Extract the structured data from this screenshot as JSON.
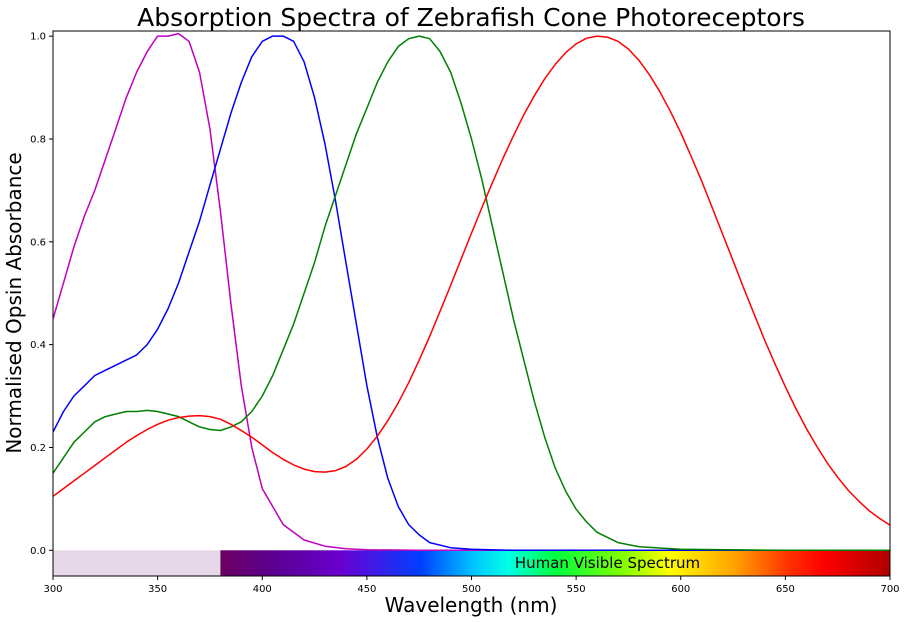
{
  "chart_data": {
    "type": "line",
    "title": "Absorption Spectra of Zebrafish Cone Photoreceptors",
    "xlabel": "Wavelength (nm)",
    "ylabel": "Normalised Opsin Absorbance",
    "xlim": [
      300,
      700
    ],
    "ylim": [
      -0.05,
      1.01
    ],
    "xticks": [
      300,
      350,
      400,
      450,
      500,
      550,
      600,
      650,
      700
    ],
    "yticks": [
      0.0,
      0.2,
      0.4,
      0.6,
      0.8,
      1.0
    ],
    "grid": false,
    "legend": false,
    "band": {
      "label": "Human Visible Spectrum",
      "uv_range": [
        300,
        380
      ],
      "visible_range": [
        380,
        700
      ],
      "y_range": [
        -0.05,
        0.0
      ],
      "uv_color": "#e6d8e8"
    },
    "series": [
      {
        "color": "#bf00bf",
        "x": [
          300,
          305,
          310,
          315,
          320,
          325,
          330,
          335,
          340,
          345,
          350,
          355,
          360,
          365,
          370,
          375,
          380,
          385,
          390,
          395,
          400,
          410,
          420,
          430,
          440,
          450,
          475,
          500,
          550,
          600,
          650,
          700
        ],
        "y": [
          0.45,
          0.52,
          0.59,
          0.65,
          0.7,
          0.76,
          0.82,
          0.88,
          0.93,
          0.97,
          1.0,
          1.0,
          1.005,
          0.99,
          0.93,
          0.82,
          0.66,
          0.48,
          0.32,
          0.2,
          0.12,
          0.05,
          0.02,
          0.008,
          0.003,
          0.001,
          0.0,
          0.0,
          0.0,
          0.0,
          0.0,
          0.0
        ]
      },
      {
        "color": "#0000ff",
        "x": [
          300,
          305,
          310,
          315,
          320,
          325,
          330,
          335,
          340,
          345,
          350,
          355,
          360,
          365,
          370,
          375,
          380,
          385,
          390,
          395,
          400,
          405,
          410,
          415,
          420,
          425,
          430,
          435,
          440,
          445,
          450,
          455,
          460,
          465,
          470,
          475,
          480,
          490,
          500,
          520,
          550,
          600,
          650,
          700
        ],
        "y": [
          0.23,
          0.27,
          0.3,
          0.32,
          0.34,
          0.35,
          0.36,
          0.37,
          0.38,
          0.4,
          0.43,
          0.47,
          0.52,
          0.58,
          0.64,
          0.71,
          0.78,
          0.85,
          0.91,
          0.96,
          0.99,
          1.0,
          1.0,
          0.99,
          0.95,
          0.88,
          0.79,
          0.68,
          0.56,
          0.44,
          0.32,
          0.22,
          0.14,
          0.085,
          0.05,
          0.03,
          0.015,
          0.005,
          0.002,
          0.0,
          0.0,
          0.0,
          0.0,
          0.0
        ]
      },
      {
        "color": "#008000",
        "x": [
          300,
          305,
          310,
          315,
          320,
          325,
          330,
          335,
          340,
          345,
          350,
          355,
          360,
          365,
          370,
          375,
          380,
          385,
          390,
          395,
          400,
          405,
          410,
          415,
          420,
          425,
          430,
          435,
          440,
          445,
          450,
          455,
          460,
          465,
          470,
          475,
          480,
          485,
          490,
          495,
          500,
          505,
          510,
          515,
          520,
          525,
          530,
          535,
          540,
          545,
          550,
          555,
          560,
          570,
          580,
          600,
          650,
          700
        ],
        "y": [
          0.15,
          0.18,
          0.21,
          0.23,
          0.25,
          0.26,
          0.265,
          0.27,
          0.27,
          0.272,
          0.27,
          0.265,
          0.26,
          0.25,
          0.24,
          0.235,
          0.233,
          0.24,
          0.25,
          0.27,
          0.3,
          0.34,
          0.39,
          0.44,
          0.5,
          0.56,
          0.63,
          0.69,
          0.75,
          0.81,
          0.86,
          0.91,
          0.95,
          0.98,
          0.995,
          1.0,
          0.995,
          0.97,
          0.93,
          0.87,
          0.8,
          0.72,
          0.63,
          0.54,
          0.45,
          0.37,
          0.29,
          0.22,
          0.16,
          0.115,
          0.08,
          0.055,
          0.035,
          0.015,
          0.007,
          0.002,
          0.0,
          0.0
        ]
      },
      {
        "color": "#ff0000",
        "x": [
          300,
          305,
          310,
          315,
          320,
          325,
          330,
          335,
          340,
          345,
          350,
          355,
          360,
          365,
          370,
          375,
          380,
          385,
          390,
          395,
          400,
          405,
          410,
          415,
          420,
          425,
          430,
          435,
          440,
          445,
          450,
          455,
          460,
          465,
          470,
          475,
          480,
          485,
          490,
          495,
          500,
          505,
          510,
          515,
          520,
          525,
          530,
          535,
          540,
          545,
          550,
          555,
          560,
          565,
          570,
          575,
          580,
          585,
          590,
          595,
          600,
          605,
          610,
          615,
          620,
          625,
          630,
          635,
          640,
          645,
          650,
          655,
          660,
          665,
          670,
          675,
          680,
          685,
          690,
          695,
          700
        ],
        "y": [
          0.105,
          0.12,
          0.135,
          0.15,
          0.165,
          0.18,
          0.195,
          0.21,
          0.223,
          0.235,
          0.245,
          0.253,
          0.258,
          0.261,
          0.262,
          0.26,
          0.255,
          0.245,
          0.233,
          0.22,
          0.205,
          0.19,
          0.177,
          0.166,
          0.158,
          0.153,
          0.152,
          0.155,
          0.163,
          0.177,
          0.197,
          0.222,
          0.252,
          0.287,
          0.326,
          0.37,
          0.416,
          0.465,
          0.515,
          0.566,
          0.617,
          0.667,
          0.715,
          0.762,
          0.806,
          0.847,
          0.884,
          0.917,
          0.945,
          0.968,
          0.985,
          0.996,
          1.0,
          0.998,
          0.99,
          0.975,
          0.953,
          0.925,
          0.892,
          0.854,
          0.812,
          0.766,
          0.718,
          0.667,
          0.615,
          0.563,
          0.511,
          0.46,
          0.41,
          0.363,
          0.318,
          0.276,
          0.237,
          0.202,
          0.17,
          0.142,
          0.117,
          0.096,
          0.077,
          0.062,
          0.049
        ]
      }
    ]
  }
}
